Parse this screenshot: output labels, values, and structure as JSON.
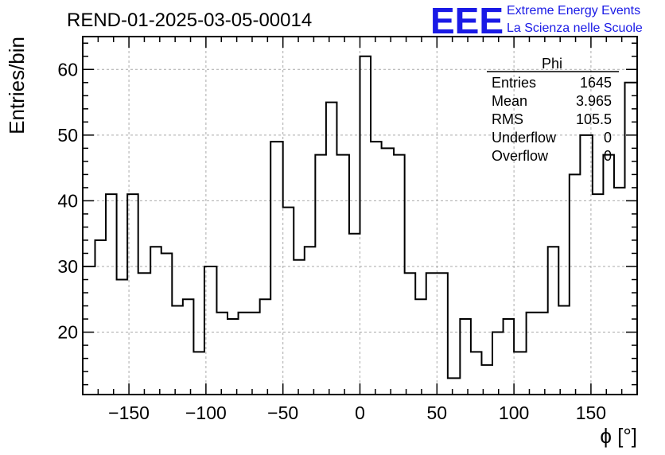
{
  "title": "REND-01-2025-03-05-00014",
  "logo": {
    "mark": "EEE",
    "line1": "Extreme Energy Events",
    "line2": "La Scienza nelle Scuole",
    "color": "#1a1ae6"
  },
  "stats": {
    "name": "Phi",
    "rows": [
      {
        "label": "Entries",
        "value": "1645"
      },
      {
        "label": "Mean",
        "value": "3.965"
      },
      {
        "label": "RMS",
        "value": "105.5"
      },
      {
        "label": "Underflow",
        "value": "0"
      },
      {
        "label": "Overflow",
        "value": "0"
      }
    ]
  },
  "chart_data": {
    "type": "histogram",
    "title": "REND-01-2025-03-05-00014",
    "xlabel": "ϕ [°]",
    "ylabel": "Entries/bin",
    "xlim": [
      -180,
      180
    ],
    "ylim": [
      10.5,
      65
    ],
    "bin_edges": [
      -180,
      -172,
      -165,
      -158,
      -151,
      -144,
      -136,
      -129,
      -122,
      -115,
      -108,
      -101,
      -93,
      -86,
      -79,
      -72,
      -65,
      -58,
      -50,
      -43,
      -36,
      -29,
      -22,
      -15,
      -7,
      0,
      7,
      14,
      22,
      29,
      36,
      43,
      50,
      57,
      65,
      72,
      79,
      86,
      93,
      100,
      108,
      115,
      122,
      129,
      136,
      143,
      151,
      158,
      165,
      172,
      180
    ],
    "values": [
      30,
      34,
      41,
      28,
      41,
      29,
      33,
      32,
      24,
      25,
      17,
      30,
      23,
      22,
      23,
      23,
      25,
      49,
      39,
      31,
      33,
      47,
      55,
      47,
      35,
      62,
      49,
      48,
      47,
      29,
      25,
      29,
      29,
      13,
      22,
      17,
      15,
      20,
      22,
      17,
      23,
      23,
      33,
      24,
      44,
      50,
      41,
      47,
      42,
      58
    ],
    "xticks": [
      -150,
      -100,
      -50,
      0,
      50,
      100,
      150
    ],
    "xtick_labels": [
      "−150",
      "−100",
      "−50",
      "0",
      "50",
      "100",
      "150"
    ],
    "yticks": [
      20,
      30,
      40,
      50,
      60
    ],
    "ytick_labels": [
      "20",
      "30",
      "40",
      "50",
      "60"
    ],
    "grid": true,
    "line_color": "#000000",
    "grid_color": "#aaaaaa"
  }
}
